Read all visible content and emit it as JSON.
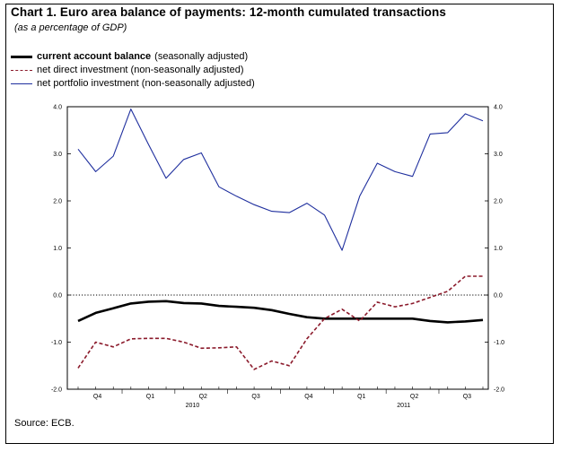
{
  "title": "Chart 1. Euro area balance of payments: 12-month cumulated transactions",
  "subtitle": "(as a percentage of GDP)",
  "legend": [
    {
      "bold": "current account balance",
      "rest": "(seasonally adjusted)",
      "color": "#000000",
      "style": "solid-thick"
    },
    {
      "bold": "",
      "rest": "net direct investment (non-seasonally adjusted)",
      "color": "#8b1a2b",
      "style": "dashed"
    },
    {
      "bold": "",
      "rest": "net portfolio investment (non-seasonally adjusted)",
      "color": "#1f2f9e",
      "style": "solid"
    }
  ],
  "source": "Source: ECB.",
  "chart_data": {
    "type": "line",
    "x": [
      "2009-10",
      "2009-11",
      "2009-12",
      "2010-01",
      "2010-02",
      "2010-03",
      "2010-04",
      "2010-05",
      "2010-06",
      "2010-07",
      "2010-08",
      "2010-09",
      "2010-10",
      "2010-11",
      "2010-12",
      "2011-01",
      "2011-02",
      "2011-03",
      "2011-04",
      "2011-05",
      "2011-06",
      "2011-07",
      "2011-08",
      "2011-09"
    ],
    "x_tick_labels": [
      "Q4",
      "Q1",
      "Q2",
      "Q3",
      "Q4",
      "Q1",
      "Q2",
      "Q3"
    ],
    "year_labels": [
      "2010",
      "2011"
    ],
    "ylim": [
      -2.0,
      4.0
    ],
    "y_ticks": [
      "4.0",
      "3.0",
      "2.0",
      "1.0",
      "0.0",
      "-1.0",
      "-2.0"
    ],
    "reference_line": 0.0,
    "series": [
      {
        "name": "current account balance",
        "color": "#000000",
        "values": [
          -0.55,
          -0.38,
          -0.28,
          -0.18,
          -0.14,
          -0.13,
          -0.17,
          -0.18,
          -0.23,
          -0.25,
          -0.27,
          -0.32,
          -0.4,
          -0.47,
          -0.5,
          -0.5,
          -0.5,
          -0.5,
          -0.5,
          -0.5,
          -0.55,
          -0.58,
          -0.56,
          -0.53
        ]
      },
      {
        "name": "net direct investment",
        "color": "#8b1a2b",
        "values": [
          -1.55,
          -1.0,
          -1.1,
          -0.93,
          -0.92,
          -0.92,
          -1.0,
          -1.13,
          -1.12,
          -1.1,
          -1.58,
          -1.4,
          -1.5,
          -0.93,
          -0.5,
          -0.3,
          -0.55,
          -0.15,
          -0.25,
          -0.18,
          -0.05,
          0.08,
          0.4,
          0.4
        ]
      },
      {
        "name": "net portfolio investment",
        "color": "#1f2f9e",
        "values": [
          3.1,
          2.62,
          2.95,
          3.95,
          3.2,
          2.48,
          2.88,
          3.02,
          2.3,
          2.1,
          1.92,
          1.78,
          1.75,
          1.95,
          1.7,
          0.95,
          2.1,
          2.8,
          2.62,
          2.52,
          3.42,
          3.45,
          3.85,
          3.7
        ]
      }
    ]
  }
}
